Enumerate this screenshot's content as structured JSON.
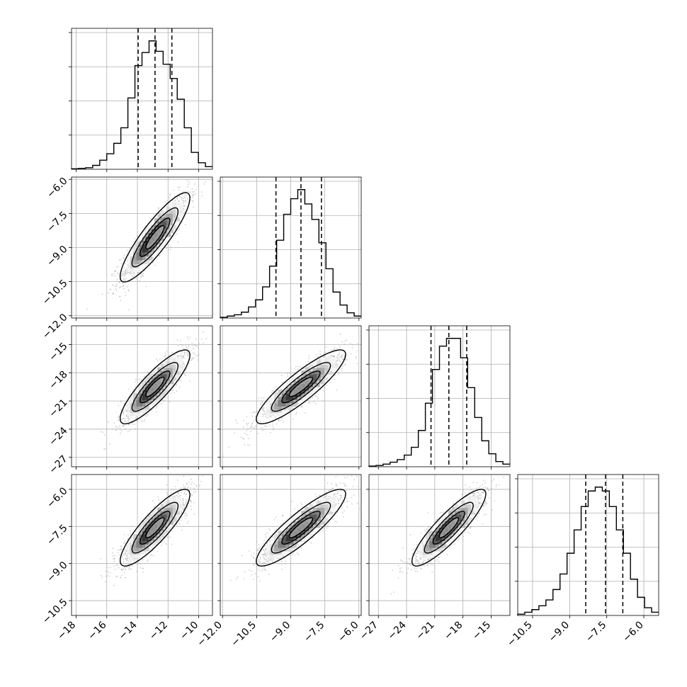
{
  "chart_data": {
    "type": "corner",
    "n_params": 4,
    "params": [
      {
        "range": [
          -18.3,
          -9.1
        ],
        "ticks": [
          -18,
          -16,
          -14,
          -12,
          -10
        ],
        "tick_labels": [
          "−18",
          "−16",
          "−14",
          "−12",
          "−10"
        ],
        "quantiles": [
          -13.95,
          -12.85,
          -11.75
        ],
        "hist": [
          0.004,
          0.007,
          0.012,
          0.03,
          0.07,
          0.12,
          0.2,
          0.32,
          0.55,
          0.8,
          0.9,
          0.99,
          0.91,
          0.81,
          0.7,
          0.54,
          0.32,
          0.13,
          0.05,
          0.02
        ]
      },
      {
        "range": [
          -12.1,
          -5.9
        ],
        "ticks": [
          -12.0,
          -10.5,
          -9.0,
          -7.5,
          -6.0
        ],
        "tick_labels": [
          "−12.0",
          "−10.5",
          "−9.0",
          "−7.5",
          "−6.0"
        ],
        "quantiles": [
          -9.65,
          -8.55,
          -7.65
        ],
        "hist": [
          0.005,
          0.015,
          0.025,
          0.045,
          0.085,
          0.14,
          0.24,
          0.4,
          0.6,
          0.8,
          0.92,
          0.99,
          0.88,
          0.76,
          0.58,
          0.38,
          0.2,
          0.1,
          0.04,
          0.015
        ]
      },
      {
        "range": [
          -28.0,
          -13.0
        ],
        "ticks": [
          -27,
          -24,
          -21,
          -18,
          -15
        ],
        "tick_labels": [
          "−27",
          "−24",
          "−21",
          "−18",
          "−15"
        ],
        "quantiles": [
          -21.4,
          -19.5,
          -17.6
        ],
        "hist": [
          0.005,
          0.01,
          0.02,
          0.035,
          0.055,
          0.09,
          0.15,
          0.28,
          0.49,
          0.75,
          0.93,
          0.99,
          0.99,
          0.84,
          0.61,
          0.38,
          0.2,
          0.1,
          0.04,
          0.02
        ]
      },
      {
        "range": [
          -11.1,
          -5.4
        ],
        "ticks": [
          -10.5,
          -9.0,
          -7.5,
          -6.0
        ],
        "tick_labels": [
          "−10.5",
          "−9.0",
          "−7.5",
          "−6.0"
        ],
        "quantiles": [
          -8.35,
          -7.55,
          -6.85
        ],
        "hist": [
          0.01,
          0.025,
          0.045,
          0.075,
          0.12,
          0.2,
          0.32,
          0.48,
          0.66,
          0.84,
          0.96,
          0.99,
          0.96,
          0.84,
          0.66,
          0.48,
          0.28,
          0.14,
          0.06,
          0.025
        ]
      }
    ],
    "ytick_labels": {
      "row1": [
        "−6.0",
        "−7.5",
        "−9.0",
        "−10.5",
        "−12.0"
      ],
      "row2": [
        "−15",
        "−18",
        "−21",
        "−24",
        "−27"
      ],
      "row3": [
        "−6.0",
        "−7.5",
        "−9.0",
        "−10.5"
      ]
    },
    "pairs": [
      {
        "row": 1,
        "col": 0,
        "mean": [
          -12.85,
          -8.55
        ],
        "sd": [
          1.1,
          0.95
        ],
        "rho": 0.88
      },
      {
        "row": 2,
        "col": 0,
        "mean": [
          -12.85,
          -19.5
        ],
        "sd": [
          1.1,
          1.9
        ],
        "rho": 0.86
      },
      {
        "row": 2,
        "col": 1,
        "mean": [
          -8.55,
          -19.5
        ],
        "sd": [
          0.95,
          1.9
        ],
        "rho": 0.88
      },
      {
        "row": 3,
        "col": 0,
        "mean": [
          -12.85,
          -7.55
        ],
        "sd": [
          1.1,
          0.75
        ],
        "rho": 0.86
      },
      {
        "row": 3,
        "col": 1,
        "mean": [
          -8.55,
          -7.55
        ],
        "sd": [
          0.95,
          0.75
        ],
        "rho": 0.88
      },
      {
        "row": 3,
        "col": 2,
        "mean": [
          -19.5,
          -7.55
        ],
        "sd": [
          1.9,
          0.75
        ],
        "rho": 0.88
      }
    ],
    "contour_levels_sigma": [
      0.5,
      1.0,
      1.5,
      2.0
    ],
    "grid": true,
    "colors": {
      "line": "#000000",
      "points": "#b0b0b0",
      "grid": "#b0b0b0"
    }
  }
}
